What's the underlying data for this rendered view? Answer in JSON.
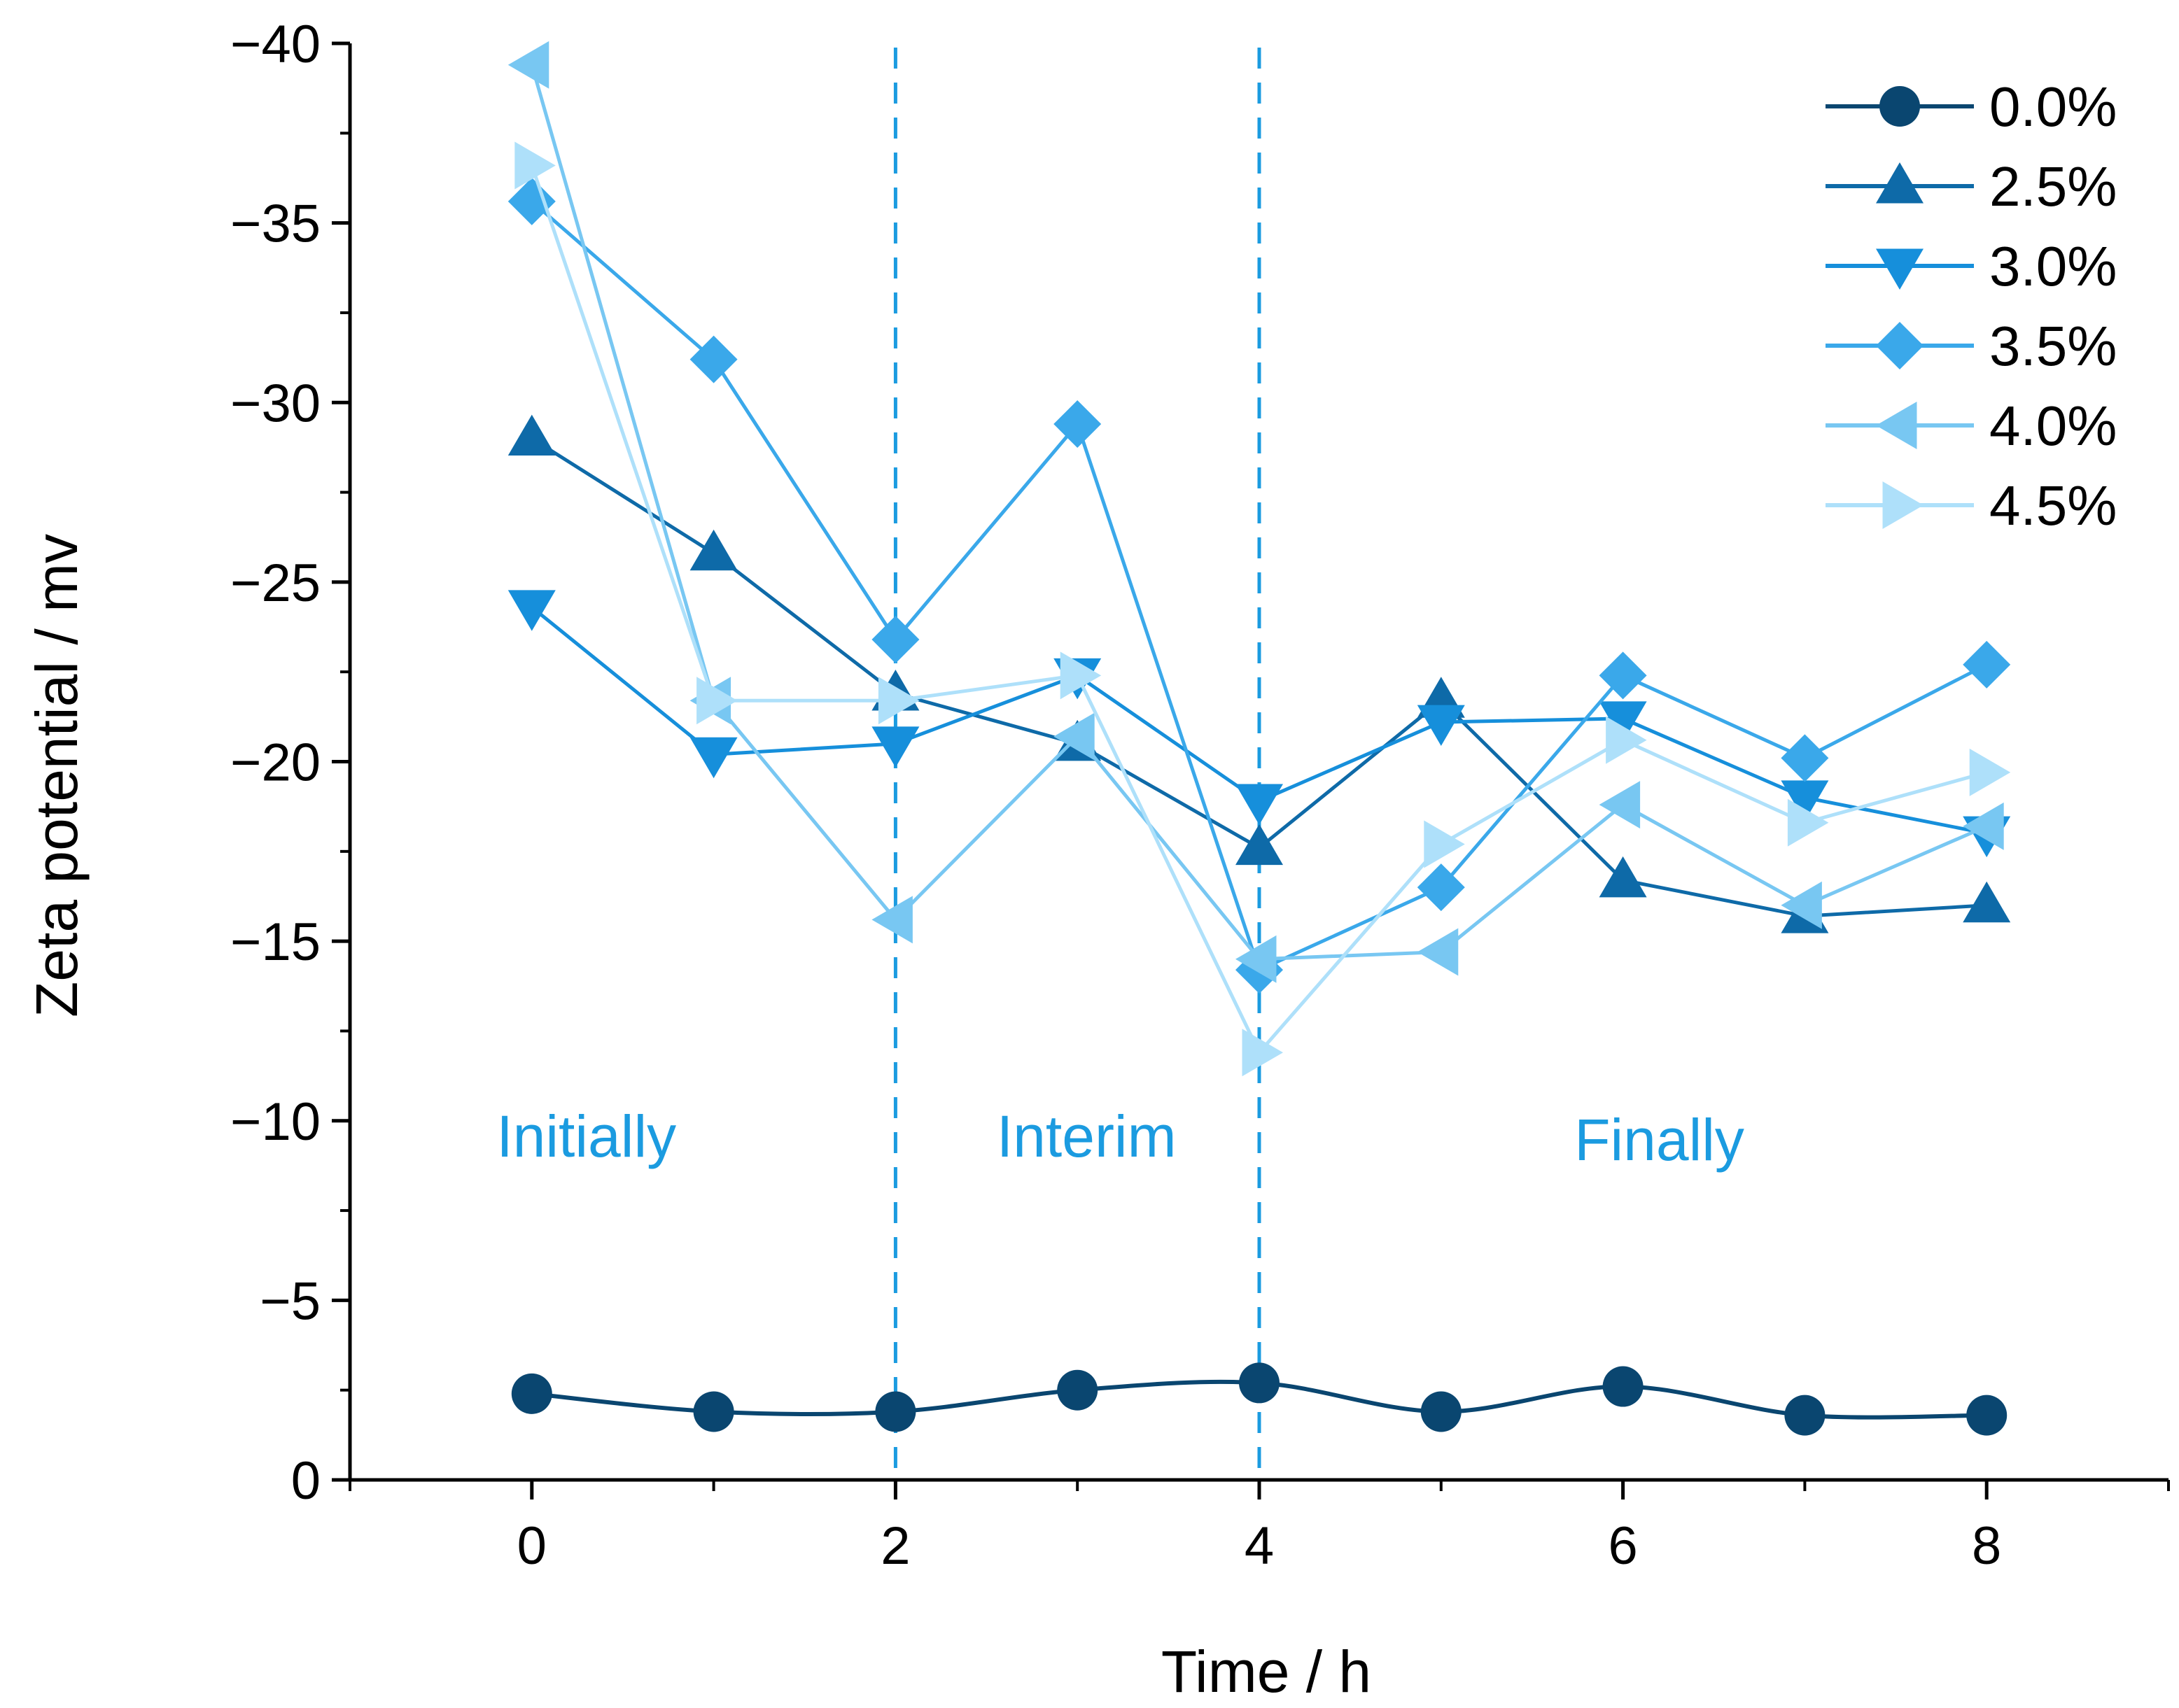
{
  "chart_data": {
    "type": "line",
    "title": "",
    "xlabel": "Time / h",
    "ylabel": "Zeta potential / mv",
    "xlim": [
      -1,
      9
    ],
    "ylim": [
      0,
      -40
    ],
    "x_ticks": [
      0,
      2,
      4,
      6,
      8
    ],
    "x_tick_labels": [
      "0",
      "2",
      "4",
      "6",
      "8"
    ],
    "y_ticks": [
      0,
      -5,
      -10,
      -15,
      -20,
      -25,
      -30,
      -35,
      -40
    ],
    "y_tick_labels": [
      "0",
      "−5",
      "−10",
      "−15",
      "−20",
      "−25",
      "−30",
      "−35",
      "−40"
    ],
    "grid": false,
    "legend_position": "top-right",
    "x": [
      0,
      1,
      2,
      3,
      4,
      5,
      6,
      7,
      8
    ],
    "series": [
      {
        "name": "0.0%",
        "marker": "circle",
        "smooth": true,
        "color": "#0a4670",
        "values": [
          -2.4,
          -1.9,
          -1.9,
          -2.5,
          -2.7,
          -1.9,
          -2.6,
          -1.8,
          -1.8
        ]
      },
      {
        "name": "2.5%",
        "marker": "triangle-up",
        "smooth": false,
        "color": "#0e6aa8",
        "values": [
          -29.0,
          -25.8,
          -21.9,
          -20.5,
          -17.6,
          -21.7,
          -16.7,
          -15.7,
          -16.0
        ]
      },
      {
        "name": "3.0%",
        "marker": "triangle-down",
        "smooth": false,
        "color": "#168fdb",
        "values": [
          -24.3,
          -20.2,
          -20.5,
          -22.4,
          -18.9,
          -21.1,
          -21.2,
          -19.0,
          -18.0
        ]
      },
      {
        "name": "3.5%",
        "marker": "diamond",
        "smooth": false,
        "color": "#3aa8ea",
        "values": [
          -35.6,
          -31.2,
          -23.4,
          -29.4,
          -14.2,
          -16.5,
          -22.4,
          -20.1,
          -22.7
        ]
      },
      {
        "name": "4.0%",
        "marker": "triangle-left",
        "smooth": false,
        "color": "#78c7f2",
        "values": [
          -39.4,
          -21.7,
          -15.6,
          -20.7,
          -14.5,
          -14.7,
          -18.8,
          -16.0,
          -18.2
        ]
      },
      {
        "name": "4.5%",
        "marker": "triangle-right",
        "smooth": false,
        "color": "#aee0fa",
        "values": [
          -36.6,
          -21.7,
          -21.7,
          -22.4,
          -11.9,
          -17.7,
          -20.6,
          -18.3,
          -19.7
        ]
      }
    ],
    "vlines": [
      2,
      4
    ],
    "vline_color": "#1b9be0",
    "annotations": [
      {
        "text": "Initially",
        "x": 0.3,
        "y": -9.0
      },
      {
        "text": "Interim",
        "x": 3.05,
        "y": -9.0
      },
      {
        "text": "Finally",
        "x": 6.2,
        "y": -8.9
      }
    ],
    "annotation_color": "#1b9be0"
  }
}
